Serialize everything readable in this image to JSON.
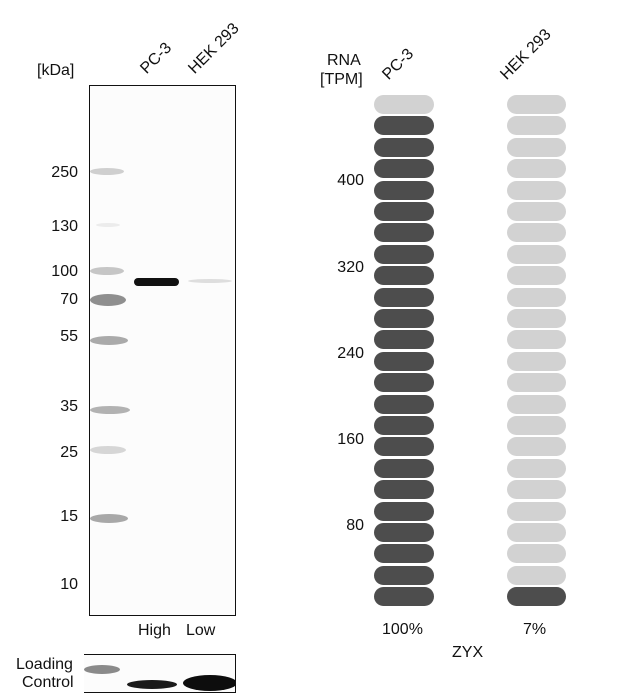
{
  "western_blot": {
    "unit_label": "[kDa]",
    "lanes": [
      "PC-3",
      "HEK 293"
    ],
    "markers": [
      "250",
      "130",
      "100",
      "70",
      "55",
      "35",
      "25",
      "15",
      "10"
    ],
    "lane_levels": [
      "High",
      "Low"
    ],
    "loading_control_label_line1": "Loading",
    "loading_control_label_line2": "Control"
  },
  "rna": {
    "axis_label_line1": "RNA",
    "axis_label_line2": "[TPM]",
    "samples": [
      "PC-3",
      "HEK 293"
    ],
    "ticks": [
      "400",
      "320",
      "240",
      "160",
      "80"
    ],
    "percent_labels": [
      "100%",
      "7%"
    ],
    "gene": "ZYX",
    "colors": {
      "filled": "#4d4d4d",
      "empty": "#d2d2d2"
    }
  },
  "chart_data": [
    {
      "type": "western_blot",
      "title": "ZYX western blot",
      "ylabel": "[kDa]",
      "lanes": [
        "PC-3",
        "HEK 293"
      ],
      "marker_kda": [
        250,
        130,
        100,
        70,
        55,
        35,
        25,
        15,
        10
      ],
      "band_kda_approx": 85,
      "band_intensity": [
        "High",
        "Low"
      ],
      "loading_control": true
    },
    {
      "type": "bar",
      "title": "ZYX",
      "ylabel": "RNA [TPM]",
      "categories": [
        "PC-3",
        "HEK 293"
      ],
      "values_percent": [
        100,
        7
      ],
      "pills_total": 24,
      "pills_filled": [
        23,
        1
      ],
      "yticks": [
        80,
        160,
        240,
        320,
        400
      ]
    }
  ]
}
